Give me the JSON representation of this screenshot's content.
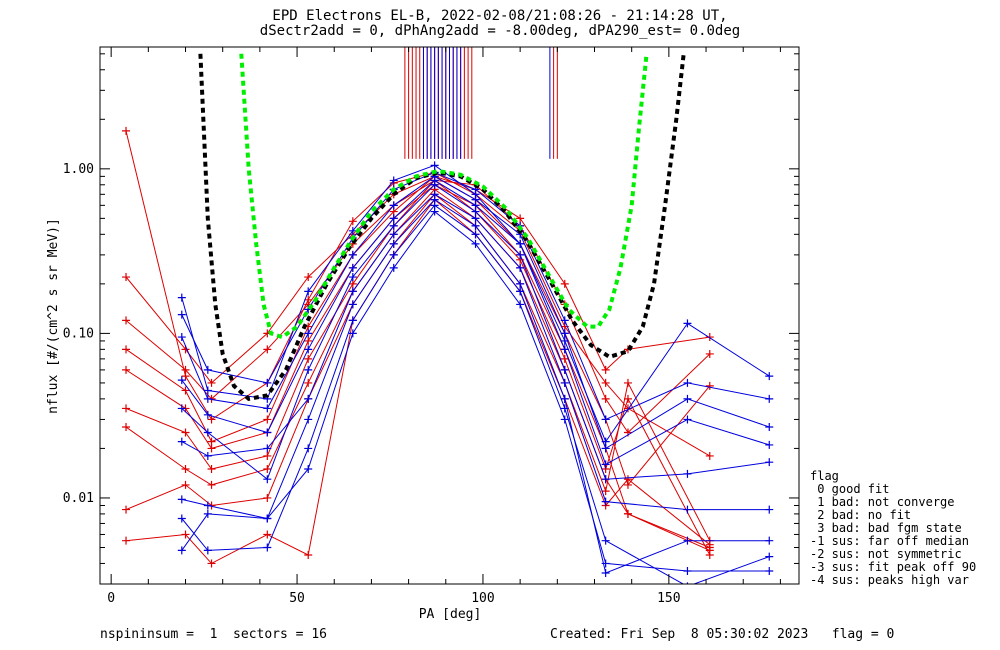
{
  "title_line1": "EPD Electrons EL-B, 2022-02-08/21:08:26 - 21:14:28 UT,",
  "title_line2": "dSectr2add = 0, dPhAng2add = -8.00deg, dPA290_est=   0.0deg",
  "footer": {
    "left": "nspininsum =  1  sectors = 16",
    "right": "Created: Fri Sep  8 05:30:02 2023   flag = 0"
  },
  "legend": {
    "title": "flag",
    "items": [
      " 0 good fit",
      " 1 bad: not converge",
      " 2 bad: no fit",
      " 3 bad: bad fgm state",
      "-1 sus: far off median",
      "-2 sus: not symmetric",
      "-3 sus: fit peak off 90",
      "-4 sus: peaks high var"
    ]
  },
  "colors": {
    "series_a": "#dd0000",
    "series_b": "#0000dd",
    "fit_black": "#000000",
    "fit_green": "#00ee00"
  },
  "chart_data": {
    "type": "line",
    "xlabel": "PA [deg]",
    "ylabel": "nflux [#/(cm^2 s sr MeV)]",
    "xlim": [
      -3,
      185
    ],
    "ylim": [
      0.003,
      5.5
    ],
    "yscale": "log",
    "xticks": [
      0,
      50,
      100,
      150
    ],
    "xtick_labels": [
      "0",
      "50",
      "100",
      "150"
    ],
    "yticks": [
      0.01,
      0.1,
      1.0
    ],
    "ytick_labels": [
      "0.01",
      "0.10",
      "1.00"
    ],
    "series": [
      {
        "color": "red",
        "x": [
          4,
          20,
          27,
          42,
          53,
          65,
          76,
          87,
          98,
          110,
          122,
          133,
          139,
          161
        ],
        "y": [
          1.7,
          0.055,
          0.03,
          0.05,
          0.16,
          0.48,
          0.82,
          0.95,
          0.7,
          0.42,
          0.11,
          0.05,
          0.035,
          0.018
        ]
      },
      {
        "color": "red",
        "x": [
          4,
          20,
          27,
          42,
          53,
          65,
          76,
          87,
          98,
          110,
          122,
          133,
          139,
          161
        ],
        "y": [
          0.22,
          0.08,
          0.05,
          0.1,
          0.22,
          0.4,
          0.7,
          0.9,
          0.75,
          0.5,
          0.2,
          0.06,
          0.08,
          0.095
        ]
      },
      {
        "color": "red",
        "x": [
          4,
          20,
          27,
          42,
          53,
          65,
          76,
          87,
          98,
          110,
          122,
          133,
          139,
          161
        ],
        "y": [
          0.12,
          0.06,
          0.04,
          0.08,
          0.15,
          0.35,
          0.6,
          0.85,
          0.8,
          0.45,
          0.15,
          0.04,
          0.025,
          0.075
        ]
      },
      {
        "color": "red",
        "x": [
          4,
          20,
          27,
          42,
          53,
          65,
          76,
          87,
          98,
          110,
          122,
          133,
          139,
          161
        ],
        "y": [
          0.08,
          0.045,
          0.022,
          0.03,
          0.11,
          0.3,
          0.55,
          0.9,
          0.65,
          0.35,
          0.1,
          0.03,
          0.012,
          0.048
        ]
      },
      {
        "color": "red",
        "x": [
          4,
          20,
          27,
          42,
          53,
          65,
          76,
          87,
          98,
          110,
          122,
          133,
          139,
          161
        ],
        "y": [
          0.06,
          0.035,
          0.02,
          0.025,
          0.09,
          0.25,
          0.5,
          0.8,
          0.6,
          0.3,
          0.08,
          0.02,
          0.008,
          0.005
        ]
      },
      {
        "color": "red",
        "x": [
          4,
          20,
          27,
          42,
          53,
          65,
          76,
          87,
          98,
          110,
          122,
          133,
          139,
          161
        ],
        "y": [
          0.035,
          0.025,
          0.015,
          0.018,
          0.07,
          0.2,
          0.45,
          0.85,
          0.55,
          0.28,
          0.07,
          0.015,
          0.04,
          0.0045
        ]
      },
      {
        "color": "red",
        "x": [
          4,
          20,
          27,
          42,
          53,
          65,
          76,
          87,
          98,
          110,
          122,
          133,
          139,
          161
        ],
        "y": [
          0.027,
          0.015,
          0.012,
          0.015,
          0.05,
          0.18,
          0.4,
          0.75,
          0.5,
          0.25,
          0.06,
          0.013,
          0.008,
          0.0048
        ]
      },
      {
        "color": "red",
        "x": [
          4,
          20,
          27,
          42,
          53,
          65,
          76,
          87,
          98,
          110,
          122,
          133,
          139,
          161
        ],
        "y": [
          0.0085,
          0.012,
          0.009,
          0.01,
          0.04,
          0.15,
          0.35,
          0.7,
          0.45,
          0.2,
          0.05,
          0.011,
          0.05,
          0.0055
        ]
      },
      {
        "color": "red",
        "x": [
          4,
          20,
          27,
          42,
          53,
          65,
          76,
          87,
          98,
          110,
          122,
          133,
          139,
          161
        ],
        "y": [
          0.0055,
          0.006,
          0.004,
          0.006,
          0.0045,
          0.12,
          0.3,
          0.65,
          0.4,
          0.18,
          0.04,
          0.009,
          0.013,
          0.0052
        ]
      },
      {
        "color": "blue",
        "x": [
          19,
          26,
          42,
          53,
          65,
          76,
          87,
          98,
          110,
          122,
          133,
          155,
          177
        ],
        "y": [
          0.165,
          0.045,
          0.04,
          0.18,
          0.42,
          0.85,
          1.05,
          0.7,
          0.35,
          0.09,
          0.022,
          0.115,
          0.055
        ]
      },
      {
        "color": "blue",
        "x": [
          19,
          26,
          42,
          53,
          65,
          76,
          87,
          98,
          110,
          122,
          133,
          155,
          177
        ],
        "y": [
          0.13,
          0.06,
          0.05,
          0.14,
          0.38,
          0.75,
          0.95,
          0.75,
          0.45,
          0.12,
          0.03,
          0.05,
          0.04
        ]
      },
      {
        "color": "blue",
        "x": [
          19,
          26,
          42,
          53,
          65,
          76,
          87,
          98,
          110,
          122,
          133,
          155,
          177
        ],
        "y": [
          0.095,
          0.04,
          0.035,
          0.1,
          0.3,
          0.6,
          0.9,
          0.65,
          0.4,
          0.1,
          0.02,
          0.04,
          0.027
        ]
      },
      {
        "color": "blue",
        "x": [
          19,
          26,
          42,
          53,
          65,
          76,
          87,
          98,
          110,
          122,
          133,
          155,
          177
        ],
        "y": [
          0.052,
          0.032,
          0.025,
          0.08,
          0.25,
          0.5,
          0.85,
          0.6,
          0.35,
          0.08,
          0.016,
          0.03,
          0.021
        ]
      },
      {
        "color": "blue",
        "x": [
          19,
          26,
          42,
          53,
          65,
          76,
          87,
          98,
          110,
          122,
          133,
          155,
          177
        ],
        "y": [
          0.035,
          0.025,
          0.013,
          0.06,
          0.22,
          0.45,
          0.8,
          0.55,
          0.3,
          0.06,
          0.013,
          0.014,
          0.0165
        ]
      },
      {
        "color": "blue",
        "x": [
          19,
          26,
          42,
          53,
          65,
          76,
          87,
          98,
          110,
          122,
          133,
          155,
          177
        ],
        "y": [
          0.022,
          0.018,
          0.02,
          0.04,
          0.18,
          0.4,
          0.7,
          0.5,
          0.25,
          0.05,
          0.0095,
          0.0085,
          0.0085
        ]
      },
      {
        "color": "blue",
        "x": [
          19,
          26,
          42,
          53,
          65,
          76,
          87,
          98,
          110,
          122,
          133,
          155,
          177
        ],
        "y": [
          0.0098,
          0.009,
          0.0075,
          0.03,
          0.15,
          0.35,
          0.65,
          0.45,
          0.2,
          0.04,
          0.0035,
          0.0055,
          0.0055
        ]
      },
      {
        "color": "blue",
        "x": [
          19,
          26,
          42,
          53,
          65,
          76,
          87,
          98,
          110,
          122,
          133,
          155,
          177
        ],
        "y": [
          0.0075,
          0.0048,
          0.005,
          0.02,
          0.12,
          0.3,
          0.6,
          0.4,
          0.18,
          0.035,
          0.0055,
          0.0029,
          0.0044
        ]
      },
      {
        "color": "blue",
        "x": [
          19,
          26,
          42,
          53,
          65,
          76,
          87,
          98,
          110,
          122,
          133,
          155,
          177
        ],
        "y": [
          0.0048,
          0.008,
          0.0075,
          0.015,
          0.1,
          0.25,
          0.55,
          0.35,
          0.15,
          0.03,
          0.004,
          0.0036,
          0.0036
        ]
      }
    ],
    "fit_curves": [
      {
        "color": "black",
        "x": [
          24,
          26,
          28,
          30,
          33,
          37,
          42,
          47,
          52,
          58,
          64,
          70,
          76,
          82,
          88,
          94,
          100,
          106,
          112,
          118,
          124,
          129,
          134,
          139,
          143,
          146,
          149,
          152,
          154
        ],
        "y": [
          5.0,
          0.5,
          0.15,
          0.075,
          0.048,
          0.04,
          0.042,
          0.06,
          0.11,
          0.2,
          0.33,
          0.5,
          0.7,
          0.88,
          0.95,
          0.9,
          0.75,
          0.55,
          0.36,
          0.21,
          0.12,
          0.085,
          0.072,
          0.078,
          0.11,
          0.2,
          0.6,
          2.0,
          5.0
        ]
      },
      {
        "color": "green",
        "x": [
          35,
          37,
          39,
          41,
          43,
          46,
          50,
          55,
          60,
          65,
          70,
          76,
          82,
          88,
          94,
          100,
          106,
          112,
          118,
          123,
          128,
          131,
          134,
          137,
          140,
          142,
          144
        ],
        "y": [
          5.0,
          1.0,
          0.35,
          0.15,
          0.1,
          0.095,
          0.11,
          0.16,
          0.25,
          0.38,
          0.55,
          0.75,
          0.9,
          0.97,
          0.92,
          0.78,
          0.58,
          0.38,
          0.22,
          0.14,
          0.11,
          0.11,
          0.14,
          0.25,
          0.6,
          1.8,
          5.0
        ]
      }
    ],
    "spikes": [
      {
        "color": "red",
        "x": [
          79,
          80,
          81,
          82,
          83,
          84,
          85,
          86,
          87,
          88,
          89,
          90,
          91,
          92,
          93,
          94,
          95,
          96,
          97,
          119,
          120
        ]
      },
      {
        "color": "blue",
        "x": [
          84,
          85,
          86,
          87,
          88,
          89,
          90,
          91,
          92,
          93,
          94,
          118
        ]
      }
    ]
  }
}
